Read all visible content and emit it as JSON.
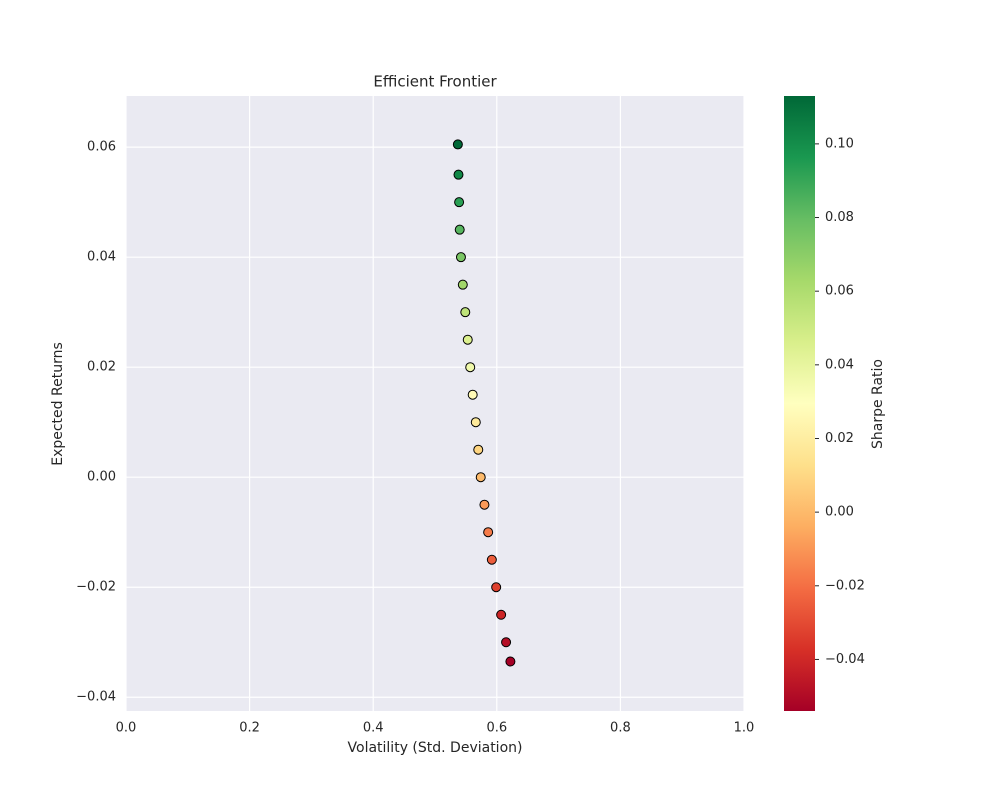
{
  "chart_data": {
    "type": "scatter",
    "title": "Efficient Frontier",
    "x_label": "Volatility (Std. Deviation)",
    "y_label": "Expected Returns",
    "colorbar_label": "Sharpe Ratio",
    "colormap": "RdYlGn",
    "grid": true,
    "edgecolor": "#000000",
    "series": [
      {
        "x": [
          0.537,
          0.538,
          0.539,
          0.54,
          0.542,
          0.545,
          0.549,
          0.553,
          0.557,
          0.561,
          0.566,
          0.57,
          0.574,
          0.58,
          0.586,
          0.592,
          0.599,
          0.607,
          0.615,
          0.622
        ],
        "values": [
          0.0605,
          0.055,
          0.05,
          0.045,
          0.04,
          0.035,
          0.03,
          0.025,
          0.02,
          0.015,
          0.01,
          0.005,
          0.0,
          -0.005,
          -0.01,
          -0.015,
          -0.02,
          -0.025,
          -0.03,
          -0.0335
        ],
        "color_values": [
          0.113,
          0.102,
          0.093,
          0.083,
          0.074,
          0.064,
          0.055,
          0.045,
          0.036,
          0.027,
          0.018,
          0.009,
          0,
          -0.009,
          -0.017,
          -0.025,
          -0.033,
          -0.041,
          -0.049,
          -0.054
        ]
      }
    ],
    "xlim": [
      0,
      1.0
    ],
    "xticks": [
      {
        "value": 0,
        "label": "0.0"
      },
      0.2,
      0.4,
      0.6,
      0.8,
      {
        "value": 1.0,
        "label": "1.0"
      }
    ],
    "ylim": [
      -0.0425,
      0.0693
    ],
    "yticks": [
      {
        "value": -0.04,
        "label": "−0.04"
      },
      {
        "value": -0.02,
        "label": "−0.02"
      },
      {
        "value": 0,
        "label": "0.00"
      },
      0.02,
      0.04,
      0.06
    ],
    "clim": [
      -0.054,
      0.113
    ],
    "cticks": [
      {
        "value": -0.04,
        "label": "−0.04"
      },
      {
        "value": -0.02,
        "label": "−0.02"
      },
      {
        "value": 0,
        "label": "0.00"
      },
      0.02,
      0.04,
      0.06,
      0.08,
      {
        "value": 0.1,
        "label": "0.10"
      }
    ]
  }
}
